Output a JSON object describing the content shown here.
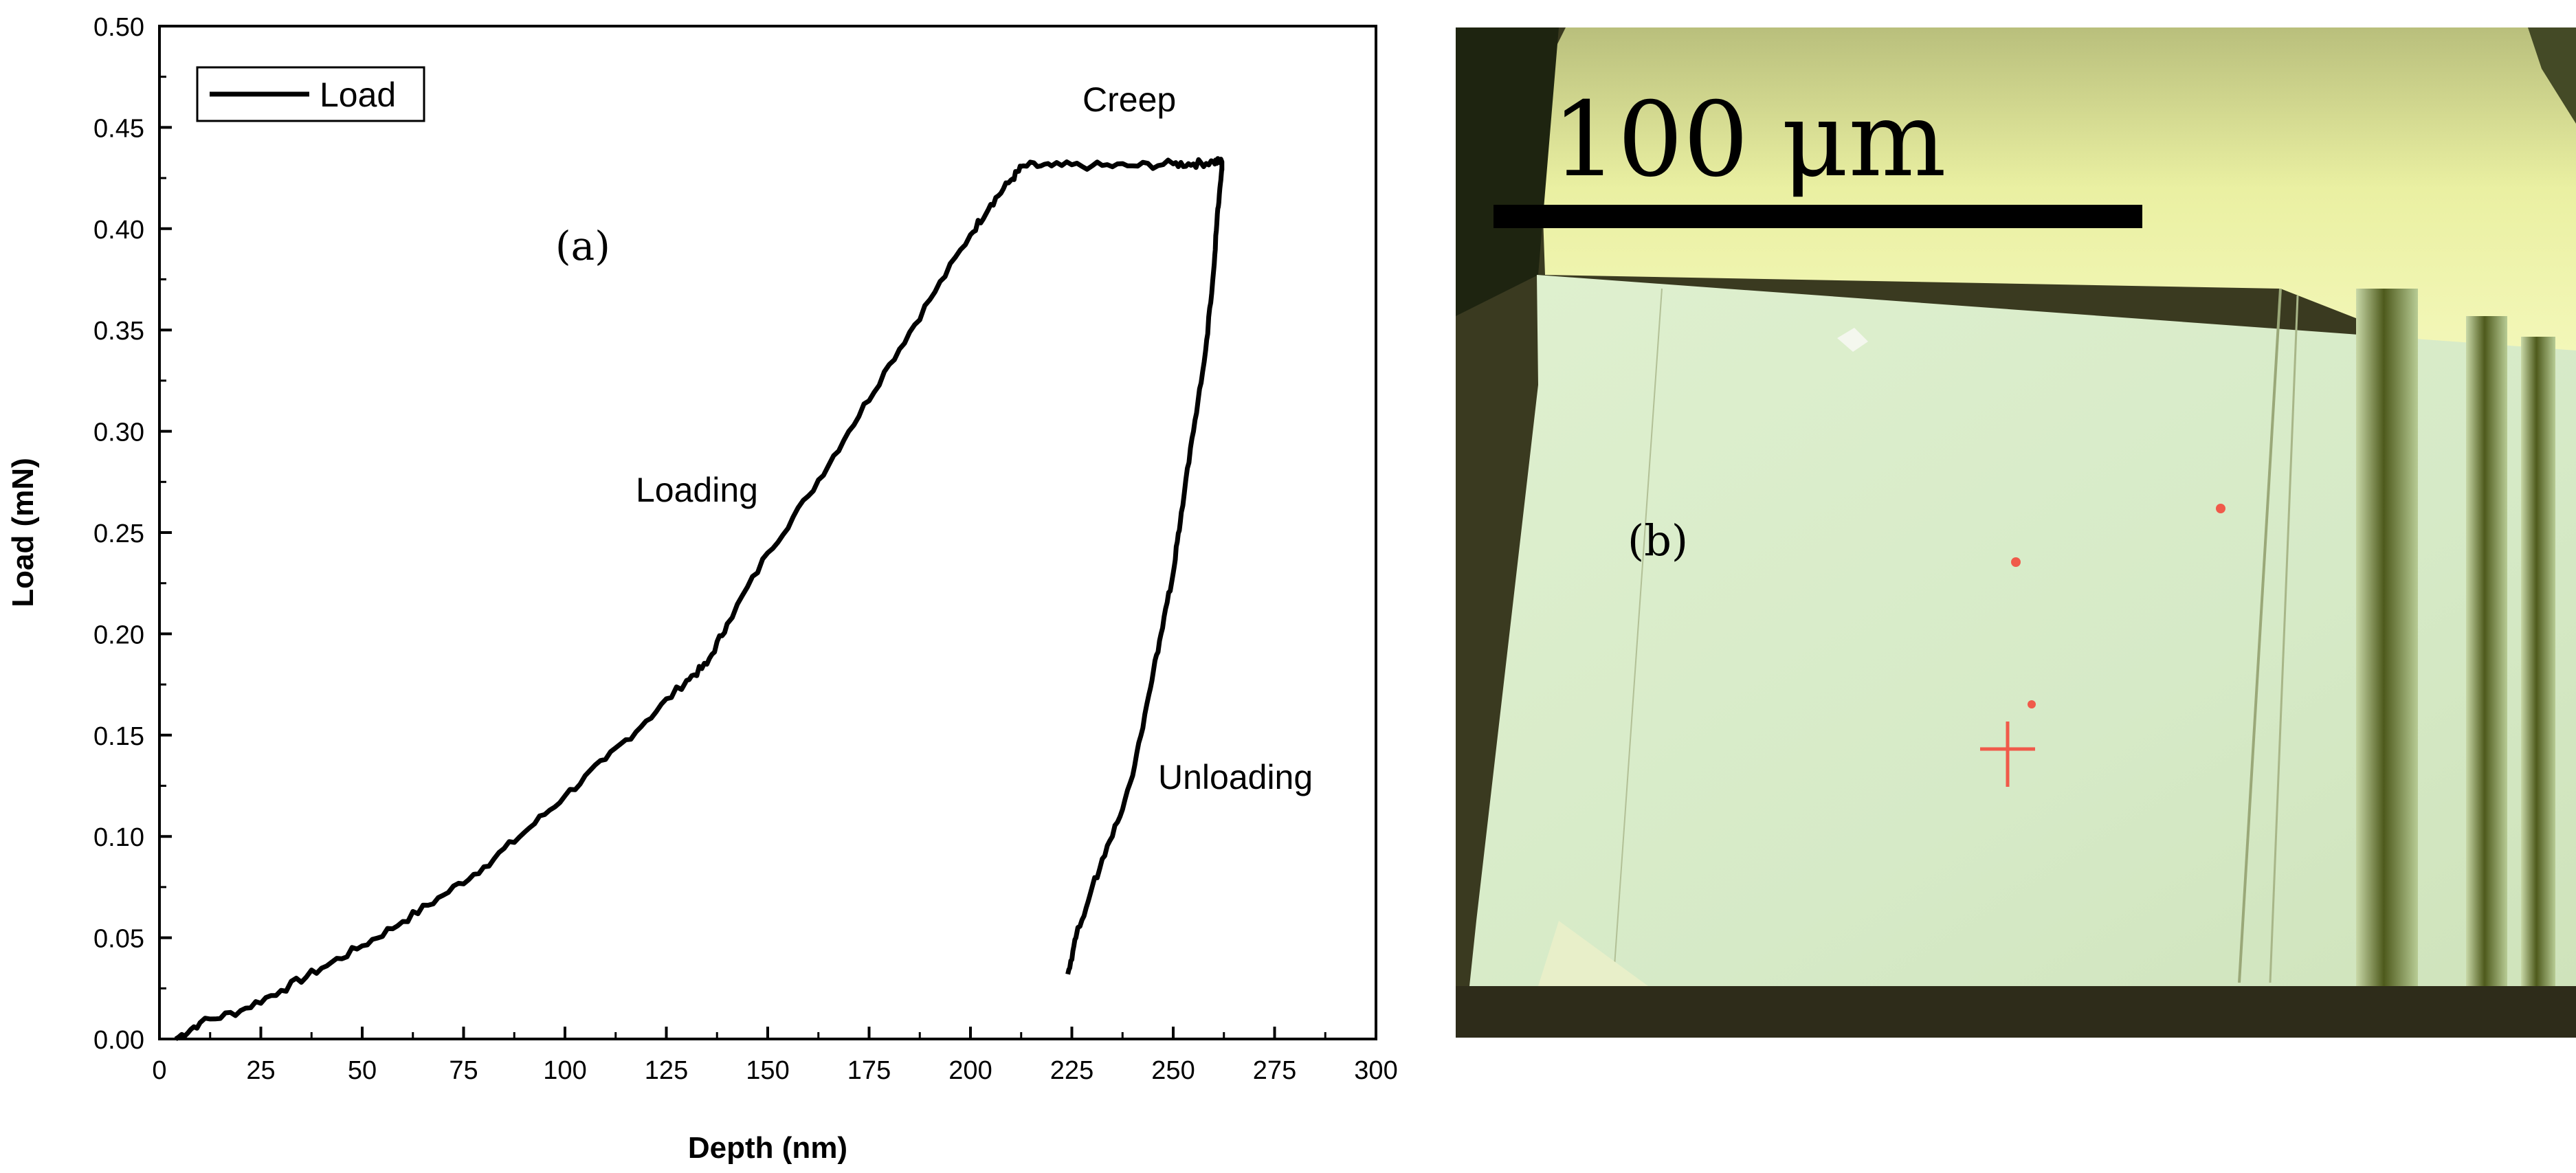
{
  "chart_data": {
    "type": "line",
    "title": "",
    "panel_label": "(a)",
    "xlabel": "Depth (nm)",
    "ylabel": "Load (mN)",
    "xlim": [
      0,
      300
    ],
    "ylim": [
      0,
      0.5
    ],
    "x_ticks": [
      "0",
      "25",
      "50",
      "75",
      "100",
      "125",
      "150",
      "175",
      "200",
      "225",
      "250",
      "275",
      "300"
    ],
    "y_ticks": [
      "0.00",
      "0.05",
      "0.10",
      "0.15",
      "0.20",
      "0.25",
      "0.30",
      "0.35",
      "0.40",
      "0.45",
      "0.50"
    ],
    "grid": false,
    "legend": {
      "position": "top-left",
      "entries": [
        "Load"
      ]
    },
    "annotations": {
      "creep": "Creep",
      "loading": "Loading",
      "unloading": "Unloading"
    },
    "series": [
      {
        "name": "Load",
        "x": [
          4,
          10,
          20,
          30,
          40,
          50,
          60,
          70,
          80,
          90,
          100,
          110,
          120,
          130,
          135,
          140,
          150,
          160,
          170,
          180,
          190,
          200,
          205,
          210,
          213,
          220,
          230,
          240,
          250,
          255,
          260,
          262,
          262,
          261,
          260,
          258,
          255,
          252,
          250,
          247,
          244,
          240,
          235,
          230,
          226,
          224
        ],
        "y": [
          0.0,
          0.008,
          0.014,
          0.024,
          0.035,
          0.046,
          0.058,
          0.071,
          0.085,
          0.102,
          0.12,
          0.138,
          0.157,
          0.177,
          0.185,
          0.205,
          0.24,
          0.268,
          0.3,
          0.333,
          0.365,
          0.397,
          0.412,
          0.424,
          0.431,
          0.431,
          0.431,
          0.431,
          0.432,
          0.432,
          0.433,
          0.433,
          0.43,
          0.41,
          0.38,
          0.34,
          0.3,
          0.26,
          0.23,
          0.2,
          0.17,
          0.13,
          0.1,
          0.075,
          0.05,
          0.032
        ]
      }
    ]
  },
  "figure_b": {
    "panel_label": "(b)",
    "scale_bar_label": "100 μm"
  }
}
